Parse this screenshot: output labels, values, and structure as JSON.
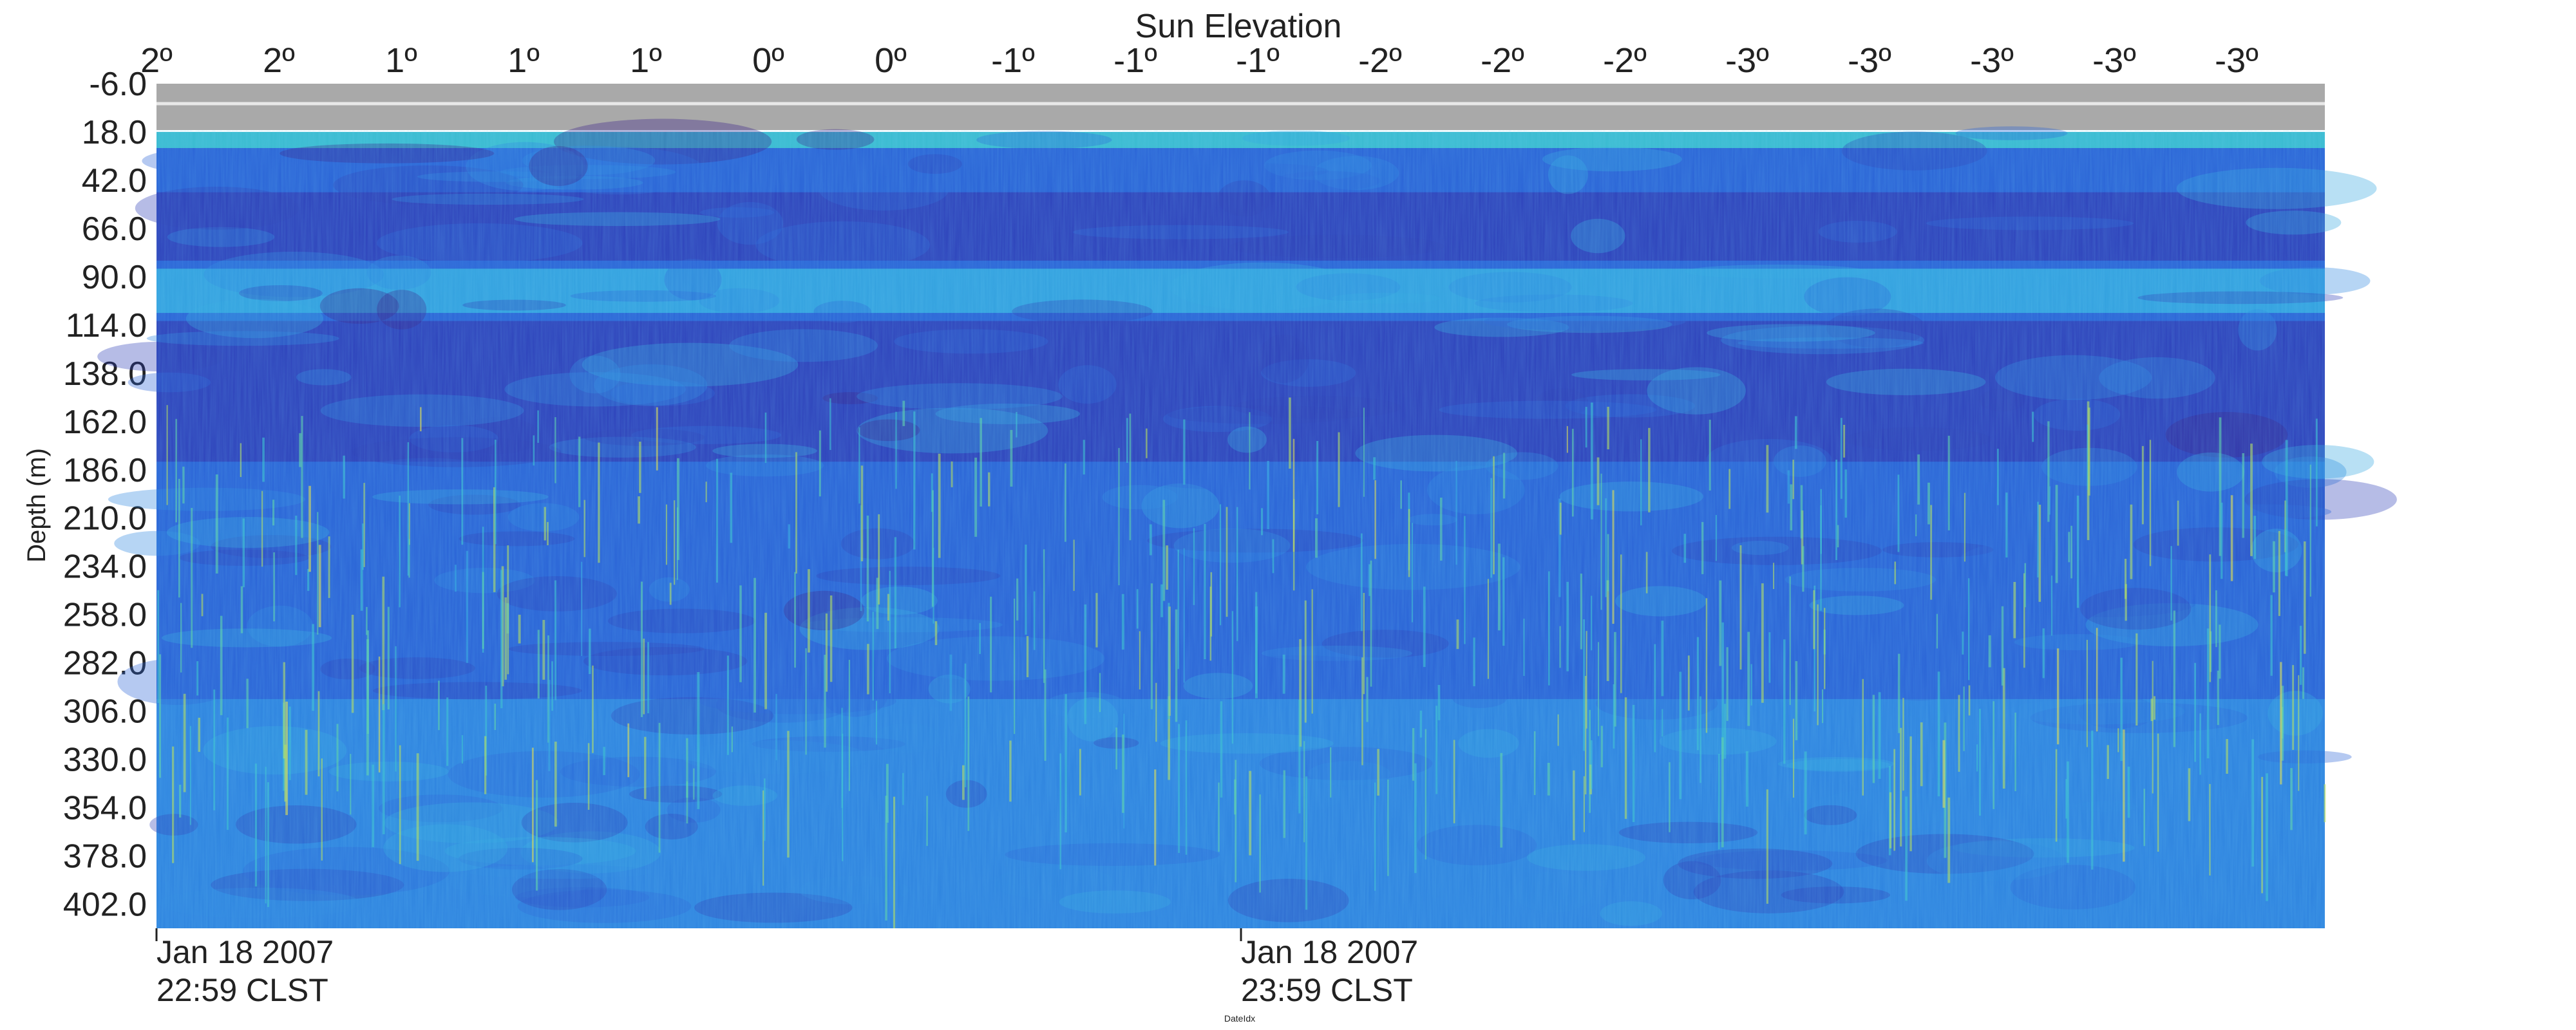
{
  "chart_data": {
    "type": "heatmap",
    "title": "Sun Elevation",
    "ylabel": "Depth (m)",
    "xlabel": "DateIdx",
    "top_axis_label": "Sun Elevation",
    "sun_elevation_ticks": [
      "2º",
      "2º",
      "1º",
      "1º",
      "1º",
      "0º",
      "0º",
      "-1º",
      "-1º",
      "-1º",
      "-2º",
      "-2º",
      "-2º",
      "-3º",
      "-3º",
      "-3º",
      "-3º",
      "-3º"
    ],
    "depth_ticks": [
      "-6.0",
      "18.0",
      "42.0",
      "66.0",
      "90.0",
      "114.0",
      "138.0",
      "162.0",
      "186.0",
      "210.0",
      "234.0",
      "258.0",
      "282.0",
      "306.0",
      "330.0",
      "354.0",
      "378.0",
      "402.0"
    ],
    "depth_range_m": [
      -6,
      414
    ],
    "time_labels": [
      {
        "date": "Jan 18 2007",
        "time": "22:59 CLST"
      },
      {
        "date": "Jan 18 2007",
        "time": "23:59 CLST"
      }
    ],
    "time_span_hours": [
      0,
      2
    ],
    "no_data_band_m": [
      -6,
      18
    ],
    "colormap": [
      "#3a1f8a",
      "#2f3fb8",
      "#2a63d6",
      "#2f86e0",
      "#34a6df",
      "#3cc2cf",
      "#5fd4a8",
      "#b8df5a",
      "#e8e04a"
    ],
    "layers": [
      {
        "name": "surface-bright",
        "top_m": 18,
        "bottom_m": 26,
        "level": 0.62
      },
      {
        "name": "shallow-dark-band",
        "top_m": 48,
        "bottom_m": 82,
        "level": 0.08
      },
      {
        "name": "mid-light-band",
        "top_m": 86,
        "bottom_m": 108,
        "level": 0.45
      },
      {
        "name": "deep-scattering-layer",
        "top_m": 112,
        "bottom_m": 182,
        "level": 0.12
      },
      {
        "name": "lower-water",
        "top_m": 182,
        "bottom_m": 300,
        "level": 0.28
      },
      {
        "name": "bottom-water",
        "top_m": 300,
        "bottom_m": 414,
        "level": 0.42
      }
    ]
  },
  "grid": false,
  "legend": "none"
}
